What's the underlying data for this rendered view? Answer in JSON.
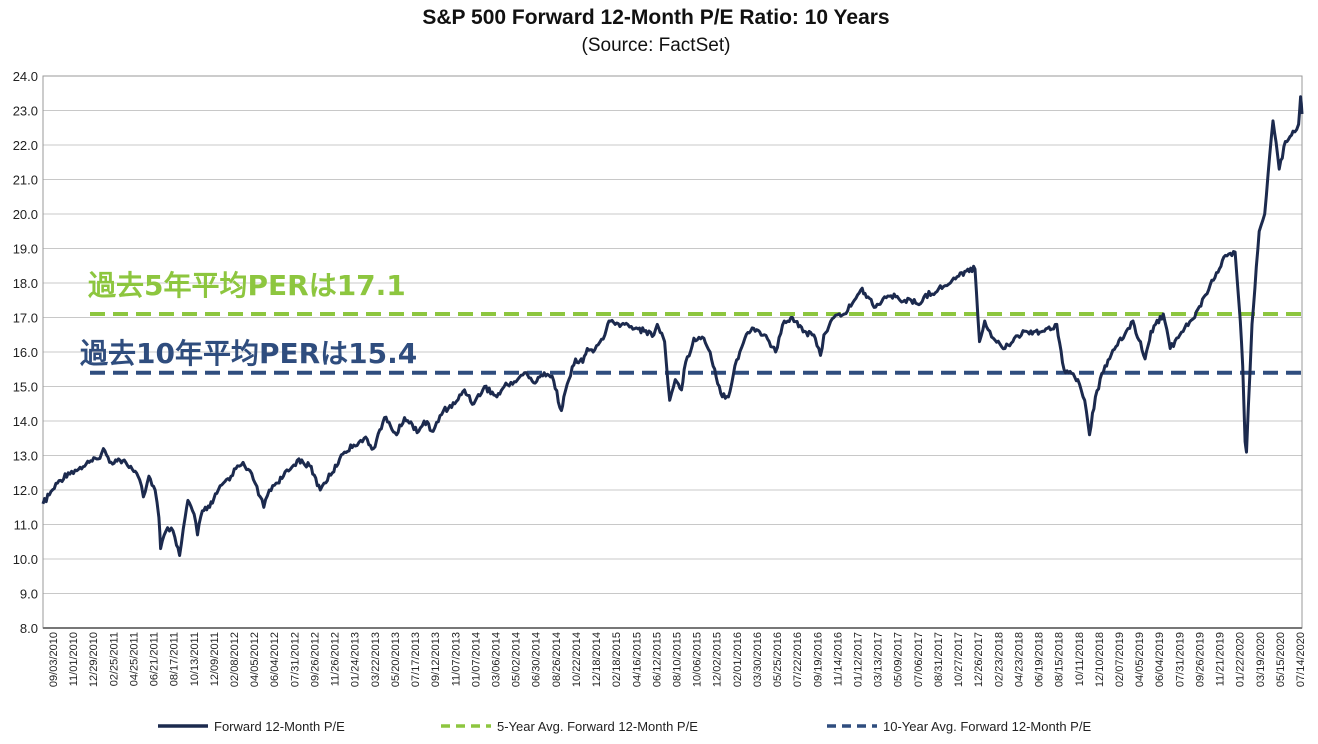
{
  "chart_data": {
    "type": "line",
    "title": "S&P 500 Forward 12-Month P/E Ratio: 10 Years",
    "subtitle": "(Source: FactSet)",
    "ylim": [
      8.0,
      24.0
    ],
    "y_ticks": [
      "8.0",
      "9.0",
      "10.0",
      "11.0",
      "12.0",
      "13.0",
      "14.0",
      "15.0",
      "16.0",
      "17.0",
      "18.0",
      "19.0",
      "20.0",
      "21.0",
      "22.0",
      "23.0",
      "24.0"
    ],
    "x_tick_labels": [
      "09/03/2010",
      "11/01/2010",
      "12/29/2010",
      "02/25/2011",
      "04/25/2011",
      "06/21/2011",
      "08/17/2011",
      "10/13/2011",
      "12/09/2011",
      "02/08/2012",
      "04/05/2012",
      "06/04/2012",
      "07/31/2012",
      "09/26/2012",
      "11/26/2012",
      "01/24/2013",
      "03/22/2013",
      "05/20/2013",
      "07/17/2013",
      "09/12/2013",
      "11/07/2013",
      "01/07/2014",
      "03/06/2014",
      "05/02/2014",
      "06/30/2014",
      "08/26/2014",
      "10/22/2014",
      "12/18/2014",
      "02/18/2015",
      "04/16/2015",
      "06/12/2015",
      "08/10/2015",
      "10/06/2015",
      "12/02/2015",
      "02/01/2016",
      "03/30/2016",
      "05/25/2016",
      "07/22/2016",
      "09/19/2016",
      "11/14/2016",
      "01/12/2017",
      "03/13/2017",
      "05/09/2017",
      "07/06/2017",
      "08/31/2017",
      "10/27/2017",
      "12/26/2017",
      "02/23/2018",
      "04/23/2018",
      "06/19/2018",
      "08/15/2018",
      "10/11/2018",
      "12/10/2018",
      "02/07/2019",
      "04/05/2019",
      "06/04/2019",
      "07/31/2019",
      "09/26/2019",
      "11/21/2019",
      "01/22/2020",
      "03/19/2020",
      "05/15/2020",
      "07/14/2020"
    ],
    "x_range": [
      "2010-09-03",
      "2020-08-31"
    ],
    "grid": true,
    "legend_position": "bottom",
    "series": [
      {
        "name": "Forward 12-Month P/E",
        "color": "#1c2a4e",
        "style": "solid",
        "points": [
          [
            "2010-09-03",
            11.6
          ],
          [
            "2010-10-15",
            12.2
          ],
          [
            "2010-11-15",
            12.5
          ],
          [
            "2010-12-15",
            12.6
          ],
          [
            "2011-01-15",
            12.8
          ],
          [
            "2011-02-10",
            12.9
          ],
          [
            "2011-02-25",
            13.2
          ],
          [
            "2011-03-15",
            12.8
          ],
          [
            "2011-04-10",
            12.9
          ],
          [
            "2011-05-01",
            12.8
          ],
          [
            "2011-05-20",
            12.6
          ],
          [
            "2011-06-10",
            12.3
          ],
          [
            "2011-06-21",
            11.8
          ],
          [
            "2011-07-07",
            12.4
          ],
          [
            "2011-07-25",
            12.0
          ],
          [
            "2011-08-05",
            11.2
          ],
          [
            "2011-08-10",
            10.3
          ],
          [
            "2011-08-25",
            10.8
          ],
          [
            "2011-09-10",
            10.9
          ],
          [
            "2011-09-25",
            10.4
          ],
          [
            "2011-10-04",
            10.1
          ],
          [
            "2011-10-20",
            11.2
          ],
          [
            "2011-10-28",
            11.7
          ],
          [
            "2011-11-15",
            11.3
          ],
          [
            "2011-11-25",
            10.7
          ],
          [
            "2011-12-09",
            11.4
          ],
          [
            "2011-12-30",
            11.5
          ],
          [
            "2012-01-20",
            11.9
          ],
          [
            "2012-02-08",
            12.2
          ],
          [
            "2012-03-01",
            12.4
          ],
          [
            "2012-03-20",
            12.7
          ],
          [
            "2012-04-05",
            12.8
          ],
          [
            "2012-04-20",
            12.6
          ],
          [
            "2012-05-10",
            12.2
          ],
          [
            "2012-05-25",
            11.8
          ],
          [
            "2012-06-04",
            11.5
          ],
          [
            "2012-06-20",
            12.0
          ],
          [
            "2012-07-10",
            12.2
          ],
          [
            "2012-07-31",
            12.4
          ],
          [
            "2012-08-20",
            12.6
          ],
          [
            "2012-09-14",
            12.9
          ],
          [
            "2012-09-26",
            12.8
          ],
          [
            "2012-10-15",
            12.7
          ],
          [
            "2012-11-15",
            12.0
          ],
          [
            "2012-11-26",
            12.2
          ],
          [
            "2012-12-20",
            12.5
          ],
          [
            "2013-01-10",
            12.9
          ],
          [
            "2013-01-24",
            13.1
          ],
          [
            "2013-02-20",
            13.3
          ],
          [
            "2013-03-22",
            13.5
          ],
          [
            "2013-04-18",
            13.2
          ],
          [
            "2013-05-20",
            14.1
          ],
          [
            "2013-06-24",
            13.6
          ],
          [
            "2013-07-17",
            14.1
          ],
          [
            "2013-08-27",
            13.7
          ],
          [
            "2013-09-12",
            14.0
          ],
          [
            "2013-10-08",
            13.7
          ],
          [
            "2013-11-07",
            14.3
          ],
          [
            "2013-12-10",
            14.5
          ],
          [
            "2014-01-07",
            14.9
          ],
          [
            "2014-02-03",
            14.5
          ],
          [
            "2014-03-06",
            15.0
          ],
          [
            "2014-04-11",
            14.7
          ],
          [
            "2014-05-02",
            15.0
          ],
          [
            "2014-06-10",
            15.2
          ],
          [
            "2014-06-30",
            15.4
          ],
          [
            "2014-07-31",
            15.1
          ],
          [
            "2014-08-26",
            15.4
          ],
          [
            "2014-09-18",
            15.3
          ],
          [
            "2014-10-15",
            14.3
          ],
          [
            "2014-10-22",
            14.7
          ],
          [
            "2014-11-25",
            15.8
          ],
          [
            "2014-12-16",
            15.7
          ],
          [
            "2014-12-29",
            16.1
          ],
          [
            "2015-01-15",
            16.0
          ],
          [
            "2015-02-18",
            16.5
          ],
          [
            "2015-03-02",
            16.9
          ],
          [
            "2015-03-20",
            16.8
          ],
          [
            "2015-04-16",
            16.8
          ],
          [
            "2015-05-20",
            16.7
          ],
          [
            "2015-06-12",
            16.6
          ],
          [
            "2015-07-10",
            16.5
          ],
          [
            "2015-07-20",
            16.8
          ],
          [
            "2015-08-10",
            16.3
          ],
          [
            "2015-08-25",
            14.6
          ],
          [
            "2015-09-10",
            15.2
          ],
          [
            "2015-09-28",
            14.9
          ],
          [
            "2015-10-06",
            15.5
          ],
          [
            "2015-11-03",
            16.4
          ],
          [
            "2015-12-02",
            16.4
          ],
          [
            "2015-12-20",
            16.0
          ],
          [
            "2016-01-20",
            14.8
          ],
          [
            "2016-02-11",
            14.7
          ],
          [
            "2016-03-01",
            15.6
          ],
          [
            "2016-03-30",
            16.4
          ],
          [
            "2016-04-20",
            16.7
          ],
          [
            "2016-05-25",
            16.5
          ],
          [
            "2016-06-27",
            16.0
          ],
          [
            "2016-07-22",
            16.9
          ],
          [
            "2016-08-15",
            17.0
          ],
          [
            "2016-09-19",
            16.6
          ],
          [
            "2016-10-20",
            16.4
          ],
          [
            "2016-11-04",
            15.9
          ],
          [
            "2016-11-14",
            16.5
          ],
          [
            "2016-12-13",
            17.0
          ],
          [
            "2017-01-12",
            17.1
          ],
          [
            "2017-02-10",
            17.5
          ],
          [
            "2017-03-01",
            17.8
          ],
          [
            "2017-03-13",
            17.7
          ],
          [
            "2017-04-13",
            17.3
          ],
          [
            "2017-05-09",
            17.6
          ],
          [
            "2017-06-10",
            17.6
          ],
          [
            "2017-07-06",
            17.5
          ],
          [
            "2017-08-21",
            17.4
          ],
          [
            "2017-08-31",
            17.6
          ],
          [
            "2017-10-27",
            17.9
          ],
          [
            "2017-12-10",
            18.2
          ],
          [
            "2018-01-05",
            18.4
          ],
          [
            "2018-01-26",
            18.4
          ],
          [
            "2018-02-08",
            16.3
          ],
          [
            "2018-02-23",
            16.9
          ],
          [
            "2018-03-20",
            16.4
          ],
          [
            "2018-04-23",
            16.1
          ],
          [
            "2018-05-20",
            16.4
          ],
          [
            "2018-06-19",
            16.6
          ],
          [
            "2018-07-20",
            16.6
          ],
          [
            "2018-08-15",
            16.6
          ],
          [
            "2018-09-20",
            16.8
          ],
          [
            "2018-10-11",
            15.5
          ],
          [
            "2018-11-20",
            15.2
          ],
          [
            "2018-12-10",
            14.6
          ],
          [
            "2018-12-24",
            13.6
          ],
          [
            "2019-01-10",
            14.7
          ],
          [
            "2019-02-07",
            15.6
          ],
          [
            "2019-03-15",
            16.2
          ],
          [
            "2019-04-05",
            16.5
          ],
          [
            "2019-04-29",
            16.9
          ],
          [
            "2019-06-03",
            15.8
          ],
          [
            "2019-06-20",
            16.6
          ],
          [
            "2019-07-26",
            17.1
          ],
          [
            "2019-08-15",
            16.1
          ],
          [
            "2019-09-26",
            16.7
          ],
          [
            "2019-10-25",
            17.0
          ],
          [
            "2019-11-21",
            17.6
          ],
          [
            "2019-12-27",
            18.3
          ],
          [
            "2020-01-22",
            18.8
          ],
          [
            "2020-02-19",
            18.9
          ],
          [
            "2020-03-05",
            16.9
          ],
          [
            "2020-03-12",
            15.6
          ],
          [
            "2020-03-19",
            13.4
          ],
          [
            "2020-03-23",
            13.1
          ],
          [
            "2020-04-08",
            16.8
          ],
          [
            "2020-04-29",
            19.5
          ],
          [
            "2020-05-15",
            20.0
          ],
          [
            "2020-06-08",
            22.7
          ],
          [
            "2020-06-26",
            21.3
          ],
          [
            "2020-07-14",
            22.1
          ],
          [
            "2020-08-05",
            22.4
          ],
          [
            "2020-08-21",
            22.6
          ],
          [
            "2020-08-27",
            23.4
          ],
          [
            "2020-08-31",
            22.9
          ]
        ]
      },
      {
        "name": "5-Year Avg. Forward 12-Month P/E",
        "color": "#8dc63f",
        "style": "dashed",
        "value": 17.1
      },
      {
        "name": "10-Year Avg. Forward 12-Month P/E",
        "color": "#2f4d7e",
        "style": "dashed",
        "value": 15.4
      }
    ],
    "annotations": [
      {
        "text": "過去5年平均PERは17.1",
        "color": "#8dc63f"
      },
      {
        "text": "過去10年平均PERは15.4",
        "color": "#2f4d7e"
      }
    ]
  }
}
